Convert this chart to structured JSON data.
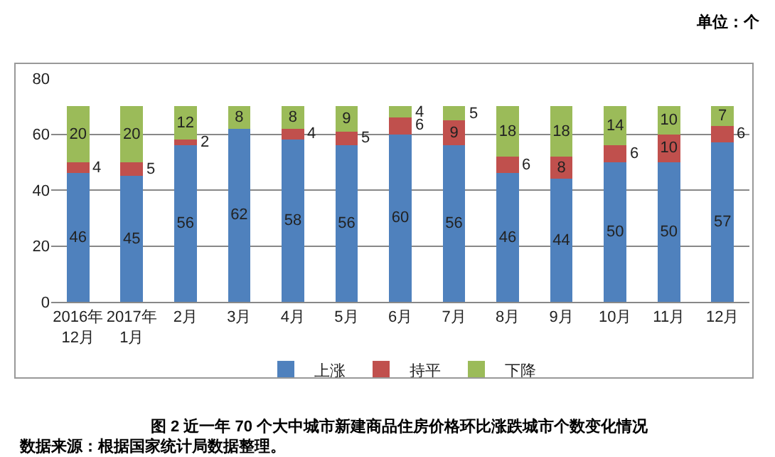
{
  "chart_data": {
    "type": "bar",
    "stacked": true,
    "title": "图 2 近一年 70 个大中城市新建商品住房价格环比涨跌城市个数变化情况",
    "annotations": [
      "单位：个",
      "数据来源：根据国家统计局数据整理。"
    ],
    "categories": [
      "2016年\n12月",
      "2017年\n1月",
      "2月",
      "3月",
      "4月",
      "5月",
      "6月",
      "7月",
      "8月",
      "9月",
      "10月",
      "11月",
      "12月"
    ],
    "series": [
      {
        "name": "上涨",
        "color": "#4f81bd",
        "values": [
          46,
          45,
          56,
          62,
          58,
          56,
          60,
          56,
          46,
          44,
          50,
          50,
          57
        ],
        "value_labels": [
          "46",
          "45",
          "56",
          "62",
          "58",
          "56",
          "60",
          "56",
          "46",
          "44",
          "50",
          "50",
          "57"
        ]
      },
      {
        "name": "持平",
        "color": "#c0504d",
        "values": [
          4,
          5,
          2,
          0,
          4,
          5,
          6,
          9,
          6,
          8,
          6,
          10,
          6
        ],
        "value_labels": [
          "4",
          "5",
          "2",
          null,
          "4",
          "5",
          "6",
          "9",
          "6",
          "8",
          "6",
          "10",
          "6"
        ]
      },
      {
        "name": "下降",
        "color": "#9bbb59",
        "values": [
          20,
          20,
          12,
          8,
          8,
          9,
          4,
          5,
          18,
          18,
          14,
          10,
          7
        ],
        "value_labels": [
          "20",
          "20",
          "12",
          "8",
          "8",
          "9",
          "4",
          "5",
          "18",
          "18",
          "14",
          "10",
          "7"
        ]
      }
    ],
    "ylim": [
      0,
      80
    ],
    "yticks": [
      0,
      20,
      40,
      60,
      80
    ],
    "grid": "y",
    "legend": "bottom"
  }
}
